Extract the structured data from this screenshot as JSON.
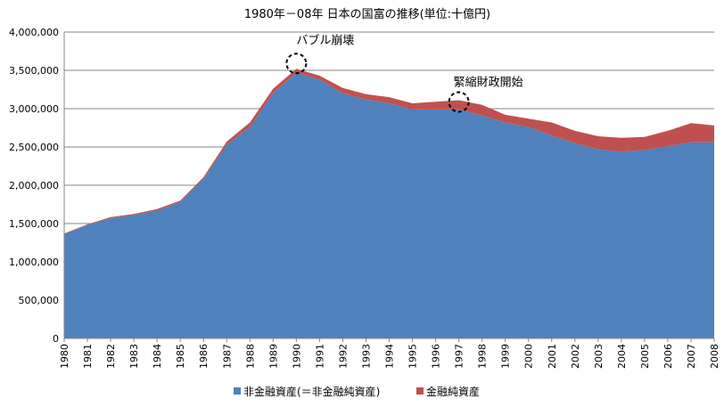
{
  "chart_data": {
    "type": "area",
    "stacked": true,
    "title": "1980年－08年 日本の国富の推移(単位:十億円)",
    "x": [
      1980,
      1981,
      1982,
      1983,
      1984,
      1985,
      1986,
      1987,
      1988,
      1989,
      1990,
      1991,
      1992,
      1993,
      1994,
      1995,
      1996,
      1997,
      1998,
      1999,
      2000,
      2001,
      2002,
      2003,
      2004,
      2005,
      2006,
      2007,
      2008
    ],
    "ylim": [
      0,
      4000000
    ],
    "yticks": [
      "0",
      "500,000",
      "1,000,000",
      "1,500,000",
      "2,000,000",
      "2,500,000",
      "3,000,000",
      "3,500,000",
      "4,000,000"
    ],
    "series": [
      {
        "name": "非金融資産(＝非金融純資産)",
        "color": "#4F81BD",
        "values": [
          1360000,
          1480000,
          1570000,
          1610000,
          1670000,
          1780000,
          2080000,
          2530000,
          2760000,
          3200000,
          3470000,
          3380000,
          3200000,
          3120000,
          3070000,
          2990000,
          2990000,
          2990000,
          2910000,
          2820000,
          2760000,
          2650000,
          2550000,
          2470000,
          2440000,
          2460000,
          2510000,
          2560000,
          2560000
        ]
      },
      {
        "name": "金融純資産",
        "color": "#C0504D",
        "values": [
          10000,
          10000,
          15000,
          15000,
          20000,
          20000,
          25000,
          40000,
          60000,
          60000,
          50000,
          50000,
          70000,
          70000,
          80000,
          80000,
          100000,
          120000,
          140000,
          100000,
          110000,
          170000,
          160000,
          170000,
          180000,
          170000,
          200000,
          250000,
          220000
        ]
      }
    ],
    "annotations": [
      {
        "text": "バブル崩壊",
        "x": 1990
      },
      {
        "text": "緊縮財政開始",
        "x": 1997
      }
    ],
    "grid": true,
    "legend": "bottom"
  }
}
